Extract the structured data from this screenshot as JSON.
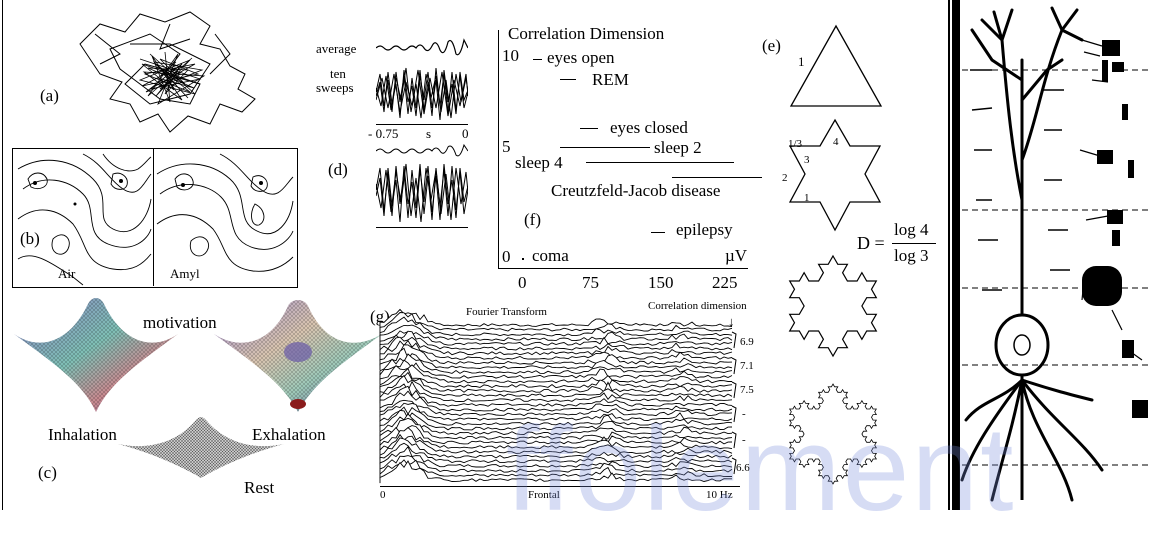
{
  "panels": {
    "a": "(a)",
    "b": "(b)",
    "c": "(c)",
    "d": "(d)",
    "e": "(e)",
    "f": "(f)",
    "g": "(g)"
  },
  "panel_b": {
    "left_label": "Air",
    "right_label": "Amyl"
  },
  "panel_c": {
    "motivation": "motivation",
    "inhalation": "Inhalation",
    "exhalation": "Exhalation",
    "rest": "Rest"
  },
  "panel_d": {
    "average": "average",
    "ten_line1": "ten",
    "ten_line2": "sweeps",
    "axis_start": "- 0.75",
    "axis_unit": "s",
    "axis_end": "0"
  },
  "chart_f": {
    "title": "Correlation Dimension",
    "y_ticks": [
      "10",
      "5",
      "0"
    ],
    "x_ticks": [
      "0",
      "75",
      "150",
      "225"
    ],
    "x_unit": "µV",
    "entries": [
      {
        "label": "eyes open",
        "dimension": 10
      },
      {
        "label": "REM",
        "dimension": 9.2
      },
      {
        "label": "eyes closed",
        "dimension": 6.3
      },
      {
        "label": "sleep 2",
        "dimension": 5.2
      },
      {
        "label": "sleep 4",
        "dimension": 4.8
      },
      {
        "label": "Creutzfeld-Jacob disease",
        "dimension": 3.8
      },
      {
        "label": "epilepsy",
        "dimension": 1.5
      },
      {
        "label": "coma",
        "dimension": 0
      }
    ]
  },
  "panel_g": {
    "fourier": "Fourier Transform",
    "corr": "Correlation dimension",
    "arrow": "↓",
    "values": [
      "6.9",
      "7.1",
      "7.5",
      "-",
      "-",
      "6.6"
    ],
    "axis_start": "0",
    "axis_mid": "Frontal",
    "axis_end": "10 Hz"
  },
  "panel_e": {
    "n1": "1",
    "third": "1/3",
    "n4": "4",
    "n3": "3",
    "n2": "2",
    "n1b": "1",
    "formula_lhs": "D =",
    "numerator": "log 4",
    "denominator": "log 3"
  },
  "watermark": "ffolement"
}
